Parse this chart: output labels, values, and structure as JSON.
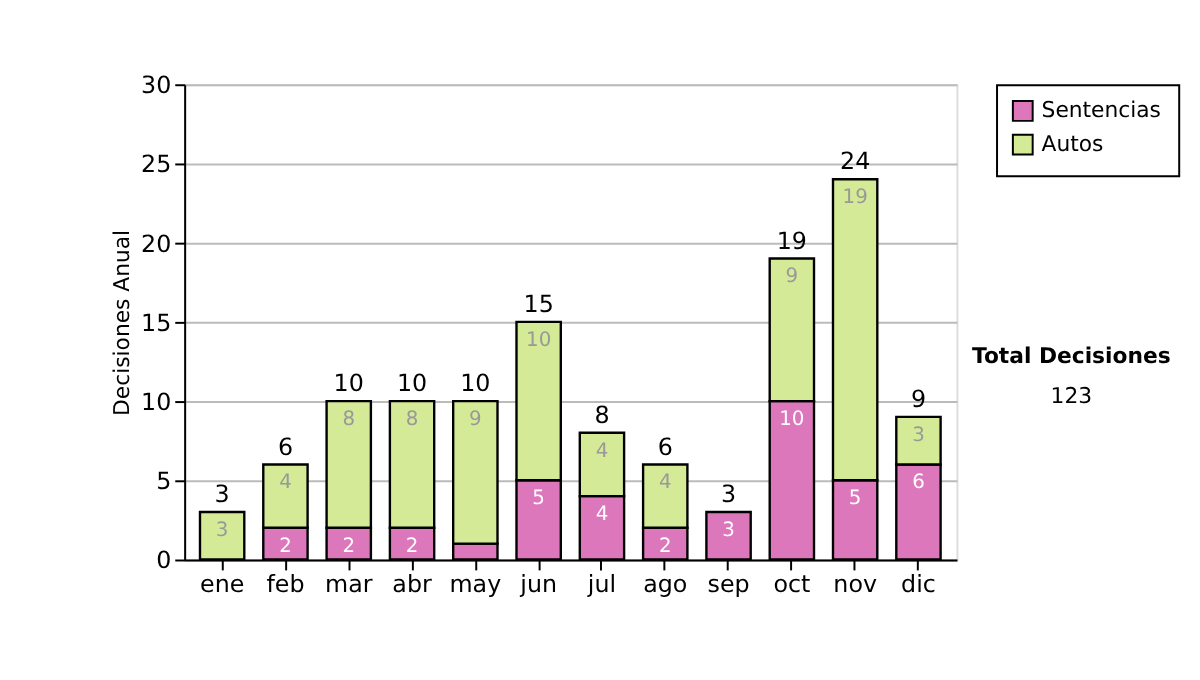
{
  "chart_data": {
    "type": "bar",
    "stacked": true,
    "ylabel": "Decisiones Anual",
    "categories": [
      "ene",
      "feb",
      "mar",
      "abr",
      "may",
      "jun",
      "jul",
      "ago",
      "sep",
      "oct",
      "nov",
      "dic"
    ],
    "series": [
      {
        "name": "Sentencias",
        "color": "#dd77bb",
        "values": [
          0,
          2,
          2,
          2,
          1,
          5,
          4,
          2,
          3,
          10,
          5,
          6
        ],
        "value_labels": [
          null,
          "2",
          "2",
          "2",
          null,
          "5",
          "4",
          "2",
          "3",
          "10",
          "5",
          "6"
        ]
      },
      {
        "name": "Autos",
        "color": "#d4ea96",
        "values": [
          3,
          4,
          8,
          8,
          9,
          10,
          4,
          4,
          0,
          9,
          19,
          3
        ],
        "value_labels": [
          "3",
          "4",
          "8",
          "8",
          "9",
          "10",
          "4",
          "4",
          null,
          "9",
          "19",
          "3"
        ]
      }
    ],
    "totals": [
      "3",
      "6",
      "10",
      "10",
      "10",
      "15",
      "8",
      "6",
      "3",
      "19",
      "24",
      "9"
    ],
    "ylim": [
      0,
      30
    ],
    "yticks": [
      0,
      5,
      10,
      15,
      20,
      25,
      30
    ],
    "grid": "y",
    "legend": "right",
    "annotations": [
      "Total Decisiones",
      "123"
    ]
  }
}
